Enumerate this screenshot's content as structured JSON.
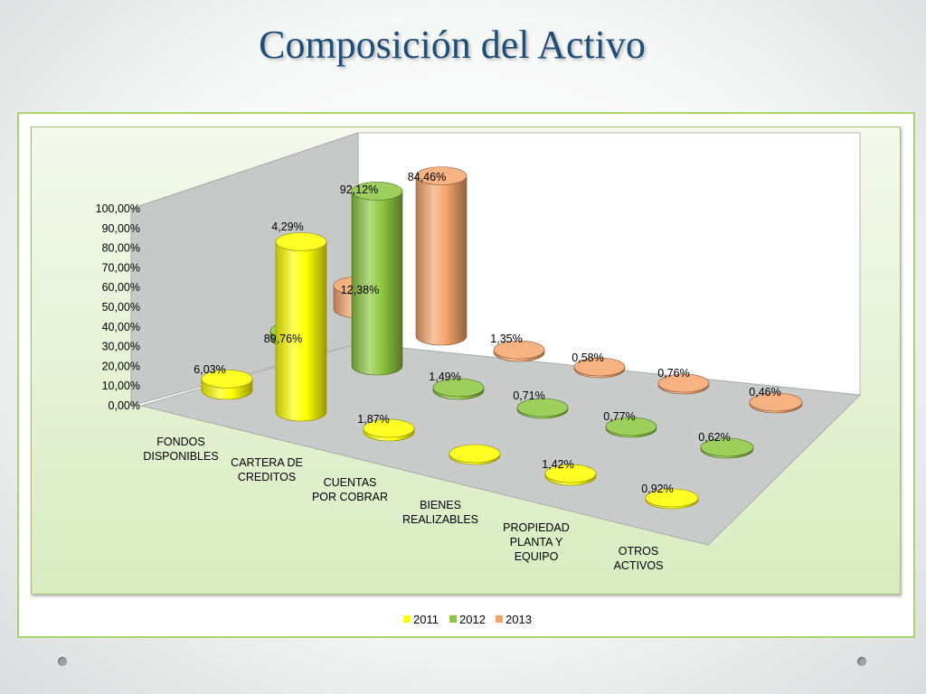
{
  "slide": {
    "title": "Composición del Activo"
  },
  "chart_data": {
    "type": "bar",
    "subtype": "3d-cylinder",
    "title": "",
    "xlabel": "",
    "ylabel": "",
    "ylim": [
      0,
      100
    ],
    "yticks": [
      "0,00%",
      "10,00%",
      "20,00%",
      "30,00%",
      "40,00%",
      "50,00%",
      "60,00%",
      "70,00%",
      "80,00%",
      "90,00%",
      "100,00%"
    ],
    "categories": [
      "FONDOS DISPONIBLES",
      "CARTERA DE CREDITOS",
      "CUENTAS POR COBRAR",
      "BIENES REALIZABLES",
      "PROPIEDAD PLANTA Y EQUIPO",
      "OTROS ACTIVOS"
    ],
    "category_lines": [
      [
        "FONDOS",
        "DISPONIBLES"
      ],
      [
        "CARTERA DE",
        "CREDITOS"
      ],
      [
        "CUENTAS",
        "POR COBRAR"
      ],
      [
        "BIENES",
        "REALIZABLES"
      ],
      [
        "PROPIEDAD",
        "PLANTA Y",
        "EQUIPO"
      ],
      [
        "OTROS",
        "ACTIVOS"
      ]
    ],
    "series": [
      {
        "name": "2011",
        "color": "#ffff00",
        "values": [
          6.03,
          89.76,
          1.87,
          0.4,
          1.42,
          0.92
        ],
        "labels": [
          "6,03%",
          "89,76%",
          "1,87%",
          "",
          "1,42%",
          "0,92%"
        ]
      },
      {
        "name": "2012",
        "color": "#8cc63f",
        "values": [
          4.29,
          92.12,
          1.49,
          0.71,
          0.77,
          0.62
        ],
        "labels": [
          "4,29%",
          "92,12%",
          "1,49%",
          "0,71%",
          "0,77%",
          "0,62%"
        ]
      },
      {
        "name": "2013",
        "color": "#f4a46a",
        "values": [
          12.38,
          84.46,
          1.35,
          0.58,
          0.76,
          0.46
        ],
        "labels": [
          "12,38%",
          "84,46%",
          "1,35%",
          "0,58%",
          "0,76%",
          "0,46%"
        ]
      }
    ],
    "legend": {
      "position": "bottom",
      "entries": [
        "2011",
        "2012",
        "2013"
      ]
    },
    "grid": false
  }
}
